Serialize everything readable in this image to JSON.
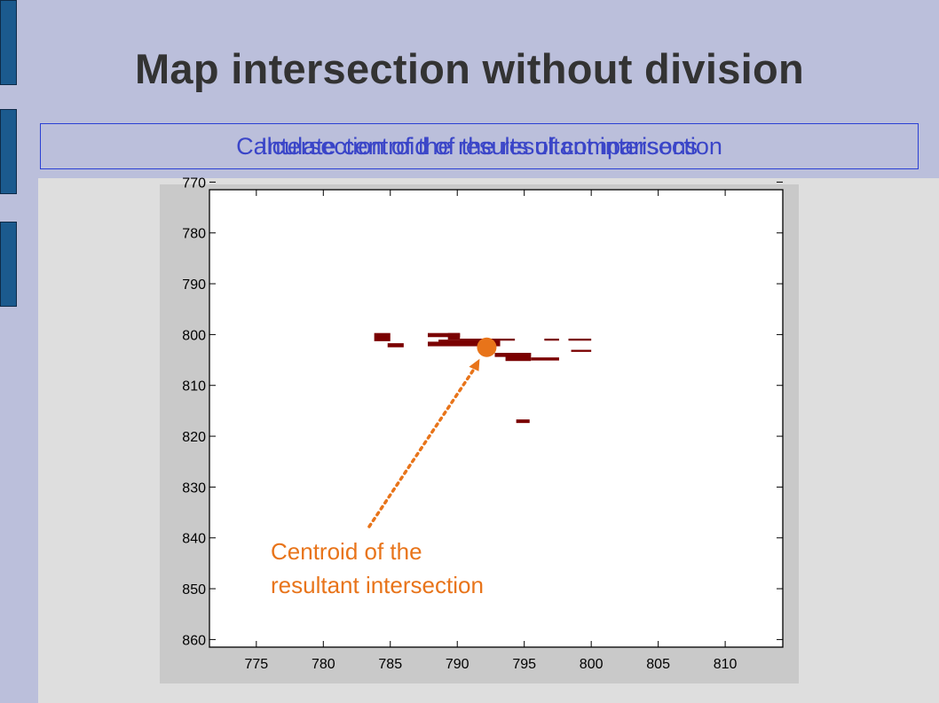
{
  "title": "Map intersection without division",
  "subtitle_a": "Calculate centroid of the resultant intersection",
  "subtitle_b": "Intersection of the results of comparisons",
  "annotation": {
    "line1": "Centroid of the",
    "line2": "resultant intersection"
  },
  "colors": {
    "background": "#bbbfdb",
    "content": "#dedede",
    "cells": "#7a0000",
    "accent": "#e8741a",
    "subtitle": "#3a45c8"
  },
  "chart_data": {
    "type": "scatter",
    "xlim": [
      771.5,
      814.3
    ],
    "ylim": [
      771.5,
      861.5
    ],
    "y_reversed": true,
    "x_ticks": [
      775,
      780,
      785,
      790,
      795,
      800,
      805,
      810
    ],
    "y_ticks": [
      770,
      780,
      790,
      800,
      810,
      820,
      830,
      840,
      850,
      860
    ],
    "grid": false,
    "cells": [
      {
        "x0": 783.8,
        "x1": 785.0,
        "y0": 799.7,
        "y1": 801.3
      },
      {
        "x0": 784.8,
        "x1": 786.0,
        "y0": 801.7,
        "y1": 802.5
      },
      {
        "x0": 787.8,
        "x1": 790.2,
        "y0": 799.7,
        "y1": 800.5
      },
      {
        "x0": 789.3,
        "x1": 790.2,
        "y0": 799.7,
        "y1": 801.0
      },
      {
        "x0": 790.2,
        "x1": 793.0,
        "y0": 800.8,
        "y1": 801.4
      },
      {
        "x0": 793.0,
        "x1": 794.3,
        "y0": 800.8,
        "y1": 801.2
      },
      {
        "x0": 787.8,
        "x1": 793.2,
        "y0": 801.4,
        "y1": 802.3
      },
      {
        "x0": 788.6,
        "x1": 793.2,
        "y0": 801.0,
        "y1": 801.6
      },
      {
        "x0": 792.8,
        "x1": 795.5,
        "y0": 803.6,
        "y1": 804.4
      },
      {
        "x0": 793.6,
        "x1": 795.5,
        "y0": 803.6,
        "y1": 805.2
      },
      {
        "x0": 795.5,
        "x1": 797.6,
        "y0": 804.5,
        "y1": 805.1
      },
      {
        "x0": 796.5,
        "x1": 797.6,
        "y0": 800.8,
        "y1": 801.2
      },
      {
        "x0": 798.3,
        "x1": 800.0,
        "y0": 800.8,
        "y1": 801.2
      },
      {
        "x0": 798.5,
        "x1": 800.0,
        "y0": 803.0,
        "y1": 803.4
      },
      {
        "x0": 794.4,
        "x1": 795.4,
        "y0": 816.7,
        "y1": 817.4
      }
    ],
    "centroid": {
      "x": 792.2,
      "y": 802.5
    }
  }
}
